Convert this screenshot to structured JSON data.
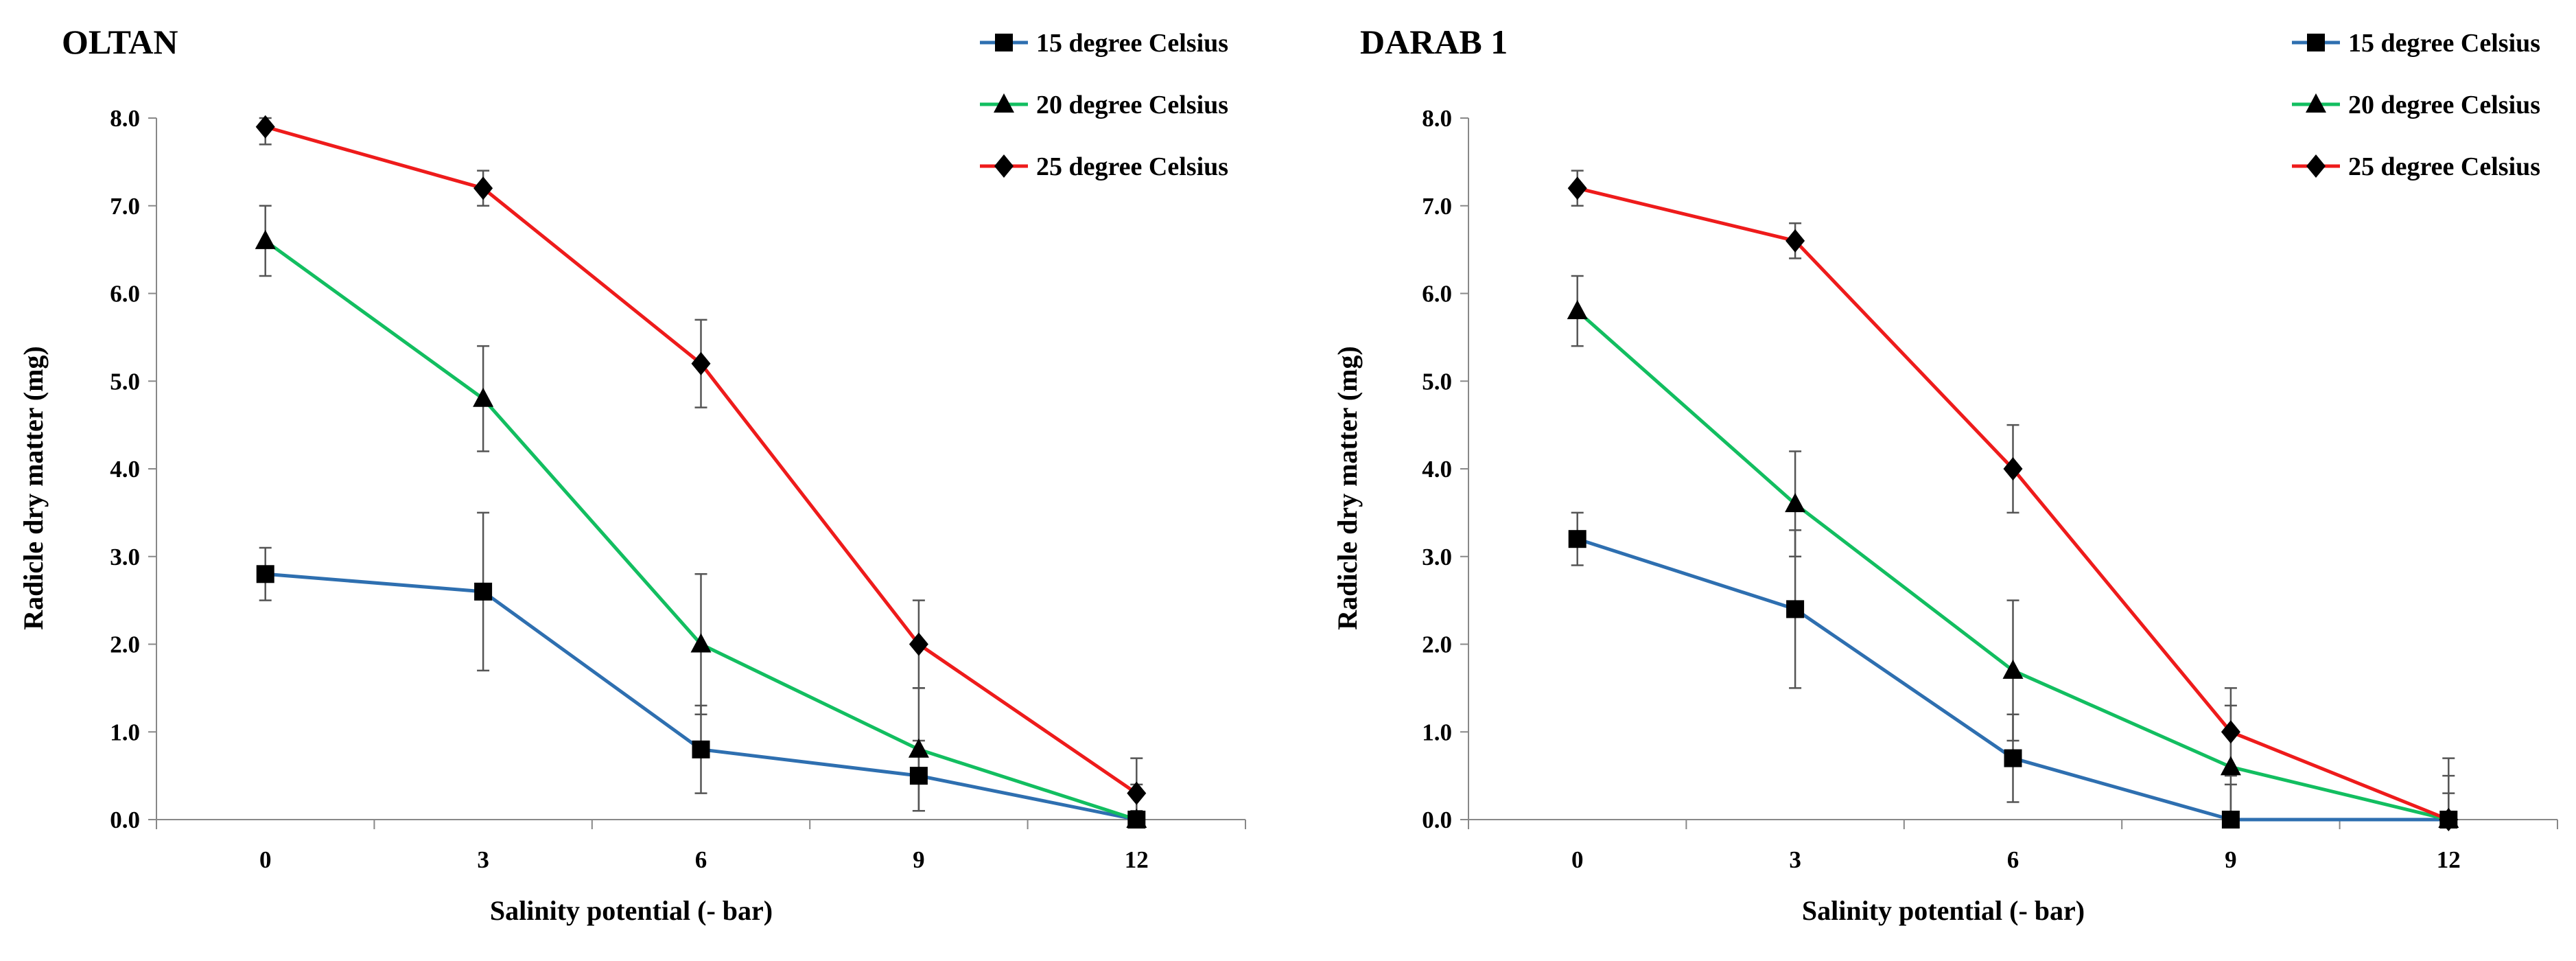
{
  "chart_data": [
    {
      "type": "line",
      "title": "OLTAN",
      "xlabel": "Salinity potential  (- bar)",
      "ylabel": "Radicle dry matter  (mg)",
      "categories": [
        "0",
        "3",
        "6",
        "9",
        "12"
      ],
      "x": [
        0,
        3,
        6,
        9,
        12
      ],
      "ylim": [
        0,
        8
      ],
      "yticks": [
        "0.0",
        "1.0",
        "2.0",
        "3.0",
        "4.0",
        "5.0",
        "6.0",
        "7.0",
        "8.0"
      ],
      "legend_position": "top-right",
      "grid": false,
      "series": [
        {
          "name": "15 degree Celsius",
          "color": "#2E6FB0",
          "marker": "square",
          "values": [
            2.8,
            2.6,
            0.8,
            0.5,
            0.0
          ],
          "errors": [
            0.3,
            0.9,
            0.5,
            0.4,
            0.1
          ]
        },
        {
          "name": "20 degree Celsius",
          "color": "#12BE60",
          "marker": "triangle",
          "values": [
            6.6,
            4.8,
            2.0,
            0.8,
            0.0
          ],
          "errors": [
            0.4,
            0.6,
            0.8,
            0.7,
            0.4
          ]
        },
        {
          "name": "25 degree Celsius",
          "color": "#EE1B1B",
          "marker": "diamond",
          "values": [
            7.9,
            7.2,
            5.2,
            2.0,
            0.3
          ],
          "errors": [
            0.2,
            0.2,
            0.5,
            0.5,
            0.4
          ]
        }
      ]
    },
    {
      "type": "line",
      "title": "DARAB 1",
      "xlabel": "Salinity potential  (- bar)",
      "ylabel": "Radicle dry matter  (mg)",
      "categories": [
        "0",
        "3",
        "6",
        "9",
        "12"
      ],
      "x": [
        0,
        3,
        6,
        9,
        12
      ],
      "ylim": [
        0,
        8
      ],
      "yticks": [
        "0.0",
        "1.0",
        "2.0",
        "3.0",
        "4.0",
        "5.0",
        "6.0",
        "7.0",
        "8.0"
      ],
      "legend_position": "top-right",
      "grid": false,
      "series": [
        {
          "name": "15 degree Celsius",
          "color": "#2E6FB0",
          "marker": "square",
          "values": [
            3.2,
            2.4,
            0.7,
            0.0,
            0.0
          ],
          "errors": [
            0.3,
            0.9,
            0.5,
            0.4,
            0.7
          ]
        },
        {
          "name": "20 degree Celsius",
          "color": "#12BE60",
          "marker": "triangle",
          "values": [
            5.8,
            3.6,
            1.7,
            0.6,
            0.0
          ],
          "errors": [
            0.4,
            0.6,
            0.8,
            0.7,
            0.5
          ]
        },
        {
          "name": "25 degree Celsius",
          "color": "#EE1B1B",
          "marker": "diamond",
          "values": [
            7.2,
            6.6,
            4.0,
            1.0,
            0.0
          ],
          "errors": [
            0.2,
            0.2,
            0.5,
            0.5,
            0.3
          ]
        }
      ]
    }
  ]
}
